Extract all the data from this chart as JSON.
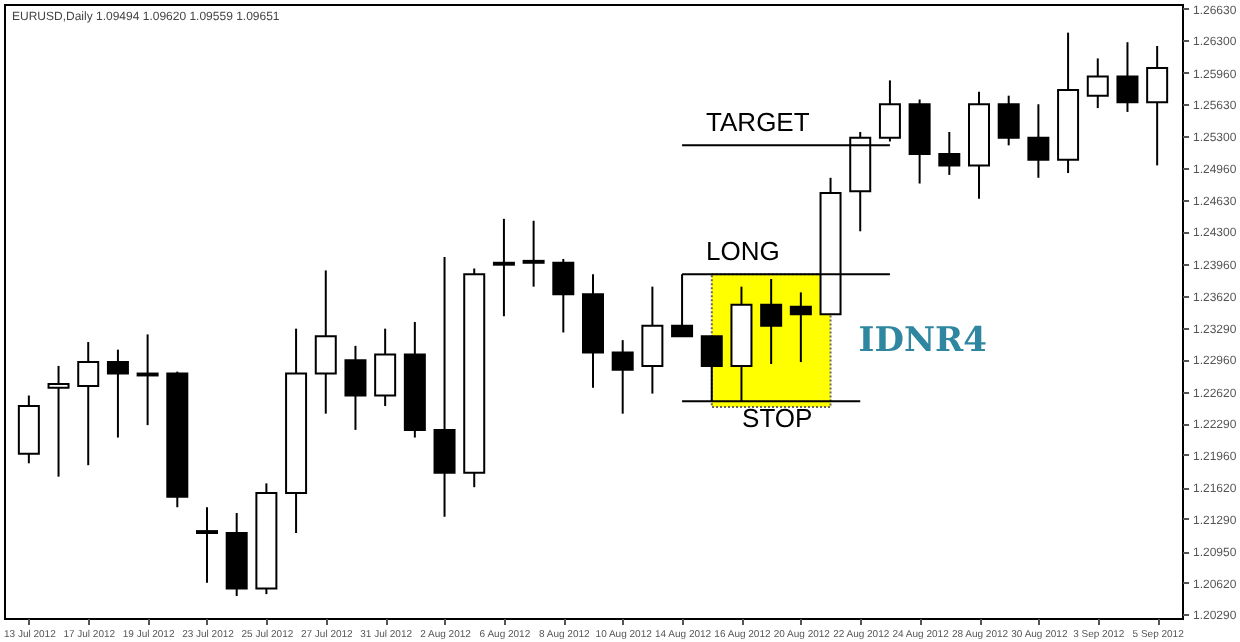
{
  "chart_data": {
    "type": "candlestick",
    "title": "EURUSD,Daily 1.09494 1.09620 1.09559 1.09651",
    "categories": [
      "13 Jul 2012",
      null,
      "17 Jul 2012",
      null,
      "19 Jul 2012",
      null,
      "23 Jul 2012",
      null,
      "25 Jul 2012",
      null,
      "27 Jul 2012",
      null,
      "31 Jul 2012",
      null,
      "2 Aug 2012",
      null,
      "6 Aug 2012",
      null,
      "8 Aug 2012",
      null,
      "10 Aug 2012",
      null,
      "14 Aug 2012",
      null,
      "16 Aug 2012",
      null,
      "20 Aug 2012",
      null,
      "22 Aug 2012",
      null,
      "24 Aug 2012",
      null,
      "28 Aug 2012",
      null,
      "30 Aug 2012",
      null,
      "3 Sep 2012",
      null,
      "5 Sep 2012"
    ],
    "ohlc": [
      [
        1.2197,
        1.2258,
        1.2187,
        1.2247
      ],
      [
        1.2266,
        1.2289,
        1.2173,
        1.227
      ],
      [
        1.2268,
        1.2314,
        1.2185,
        1.2293
      ],
      [
        1.2293,
        1.2306,
        1.2214,
        1.2281
      ],
      [
        1.2281,
        1.2322,
        1.2227,
        1.2279
      ],
      [
        1.2281,
        1.2283,
        1.2141,
        1.2152
      ],
      [
        1.2116,
        1.2141,
        1.2062,
        1.2114
      ],
      [
        1.2114,
        1.2135,
        1.2048,
        1.2056
      ],
      [
        1.2056,
        1.2166,
        1.205,
        1.2156
      ],
      [
        1.2156,
        1.2328,
        1.2114,
        1.2281
      ],
      [
        1.2281,
        1.2389,
        1.2239,
        1.232
      ],
      [
        1.2295,
        1.231,
        1.2222,
        1.2258
      ],
      [
        1.2258,
        1.2328,
        1.2247,
        1.2301
      ],
      [
        1.2301,
        1.2335,
        1.2214,
        1.2222
      ],
      [
        1.2222,
        1.2403,
        1.2131,
        1.2177
      ],
      [
        1.2177,
        1.2391,
        1.2162,
        1.2385
      ],
      [
        1.2395,
        1.2443,
        1.2341,
        1.2397
      ],
      [
        1.2399,
        1.2441,
        1.2372,
        1.2397
      ],
      [
        1.2397,
        1.2401,
        1.2324,
        1.2364
      ],
      [
        1.2364,
        1.2385,
        1.2266,
        1.2303
      ],
      [
        1.2303,
        1.2316,
        1.2239,
        1.2285
      ],
      [
        1.2289,
        1.2372,
        1.226,
        1.2331
      ],
      [
        1.2331,
        1.2385,
        1.232,
        1.232
      ],
      [
        1.232,
        1.232,
        1.2252,
        1.2289
      ],
      [
        1.2289,
        1.2372,
        1.2252,
        1.2353
      ],
      [
        1.2353,
        1.238,
        1.2291,
        1.2331
      ],
      [
        1.2351,
        1.2366,
        1.2293,
        1.2343
      ],
      [
        1.2343,
        1.2486,
        1.2343,
        1.247
      ],
      [
        1.2472,
        1.2534,
        1.243,
        1.2528
      ],
      [
        1.2528,
        1.2588,
        1.2524,
        1.2563
      ],
      [
        1.2563,
        1.2568,
        1.248,
        1.2511
      ],
      [
        1.2511,
        1.2534,
        1.2489,
        1.2499
      ],
      [
        1.2499,
        1.2576,
        1.2464,
        1.2563
      ],
      [
        1.2563,
        1.2572,
        1.252,
        1.2528
      ],
      [
        1.2528,
        1.2563,
        1.2486,
        1.2505
      ],
      [
        1.2505,
        1.2638,
        1.2491,
        1.2578
      ],
      [
        1.2572,
        1.2611,
        1.2559,
        1.2592
      ],
      [
        1.2592,
        1.2628,
        1.2555,
        1.2565
      ],
      [
        1.2565,
        1.2624,
        1.2499,
        1.2601
      ]
    ],
    "ylim": [
      1.2025,
      1.2668
    ],
    "yticks": [
      {
        "value": 1.2029,
        "label": "1.20290"
      },
      {
        "value": 1.2062,
        "label": "1.20620"
      },
      {
        "value": 1.2095,
        "label": "1.20950"
      },
      {
        "value": 1.2129,
        "label": "1.21290"
      },
      {
        "value": 1.2162,
        "label": "1.21620"
      },
      {
        "value": 1.2196,
        "label": "1.21960"
      },
      {
        "value": 1.2229,
        "label": "1.22290"
      },
      {
        "value": 1.2262,
        "label": "1.22620"
      },
      {
        "value": 1.2296,
        "label": "1.22960"
      },
      {
        "value": 1.2329,
        "label": "1.23290"
      },
      {
        "value": 1.2362,
        "label": "1.23620"
      },
      {
        "value": 1.2396,
        "label": "1.23960"
      },
      {
        "value": 1.243,
        "label": "1.24300"
      },
      {
        "value": 1.2463,
        "label": "1.24630"
      },
      {
        "value": 1.2496,
        "label": "1.24960"
      },
      {
        "value": 1.253,
        "label": "1.25300"
      },
      {
        "value": 1.2563,
        "label": "1.25630"
      },
      {
        "value": 1.2596,
        "label": "1.25960"
      },
      {
        "value": 1.263,
        "label": "1.26300"
      },
      {
        "value": 1.2663,
        "label": "1.26630"
      }
    ],
    "ref_lines": [
      {
        "axis": "y",
        "value": 1.252,
        "label": "TARGET"
      },
      {
        "axis": "y",
        "value": 1.2385,
        "label": "LONG"
      },
      {
        "axis": "y",
        "value": 1.2252,
        "label": "STOP"
      }
    ],
    "bands": [
      {
        "axis": "y",
        "from": 1.2246,
        "to": 1.2385,
        "label": "IDNR4",
        "color": "#ffff00"
      }
    ]
  }
}
